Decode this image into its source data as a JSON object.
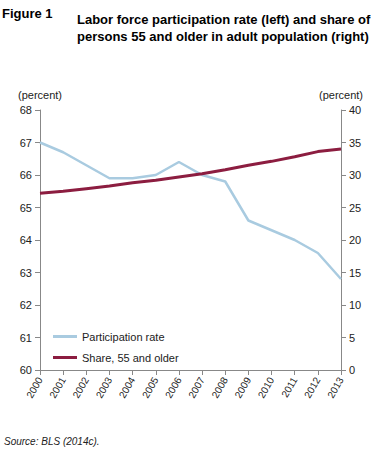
{
  "chart_data": {
    "type": "line",
    "figure_number": "Figure 1",
    "title": "Labor force participation rate (left) and share of persons 55 and older in adult population (right)",
    "ylabel": "(percent)",
    "y2label": "(percent)",
    "source": "Source: BLS (2014c).",
    "categories": [
      "2000",
      "2001",
      "2002",
      "2003",
      "2004",
      "2005",
      "2006",
      "2007",
      "2008",
      "2009",
      "2010",
      "2011",
      "2012",
      "2013"
    ],
    "series": [
      {
        "name": "Participation rate",
        "color": "#a9cbe0",
        "values": [
          67.0,
          66.7,
          66.3,
          65.9,
          65.9,
          66.0,
          66.4,
          66.0,
          65.8,
          64.6,
          64.3,
          64.0,
          63.6,
          62.8
        ]
      },
      {
        "name": "Share, 55 and older",
        "color": "#8c1d40",
        "axis": "y2",
        "values": [
          27.2,
          27.5,
          27.9,
          28.3,
          28.8,
          29.2,
          29.7,
          30.2,
          30.8,
          31.5,
          32.1,
          32.8,
          33.6,
          34.0
        ]
      }
    ],
    "ylim": [
      60,
      68
    ],
    "yticks": [
      60,
      61,
      62,
      63,
      64,
      65,
      66,
      67,
      68
    ],
    "y2lim": [
      0,
      40
    ],
    "y2ticks": [
      0,
      5,
      10,
      15,
      20,
      25,
      30,
      35,
      40
    ],
    "grid": false,
    "legend": "lower left"
  }
}
